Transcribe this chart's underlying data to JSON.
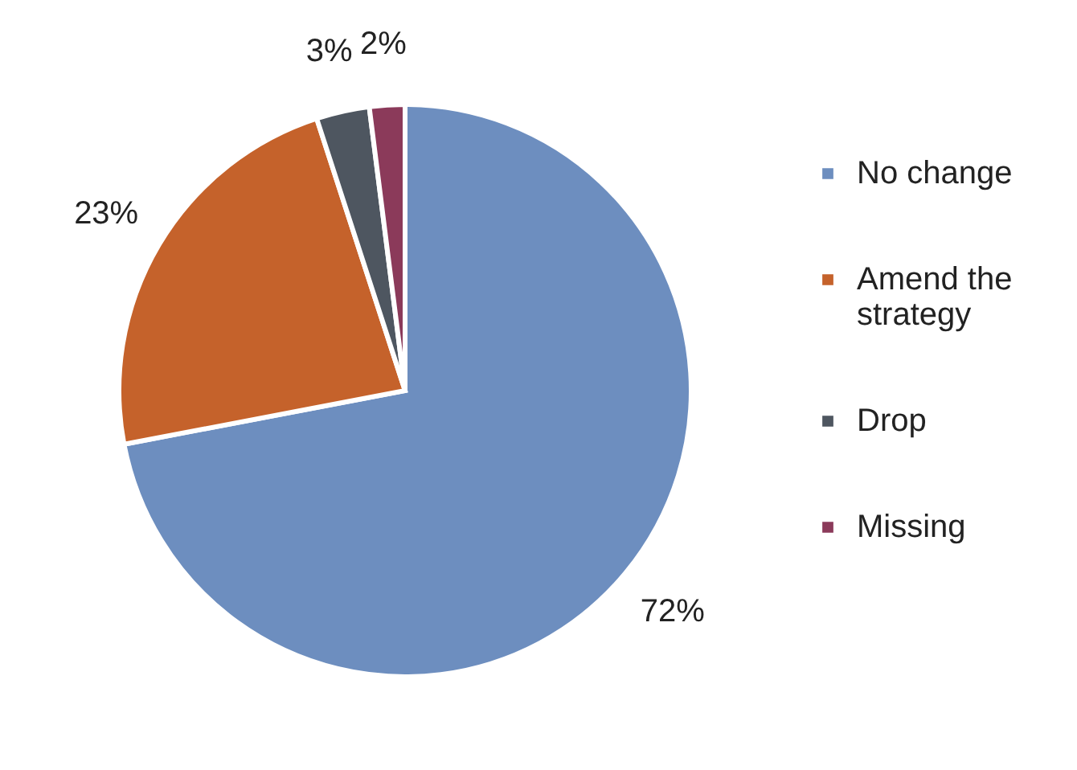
{
  "chart_data": {
    "type": "pie",
    "categories": [
      "No change",
      " Amend the strategy",
      "Drop",
      "Missing"
    ],
    "values": [
      72,
      23,
      3,
      2
    ],
    "colors": [
      "#6d8ebf",
      "#c5622b",
      "#4e5660",
      "#8b3a5a"
    ],
    "value_labels": [
      "72%",
      "23%",
      "3%",
      "2%"
    ],
    "legend": "right"
  }
}
